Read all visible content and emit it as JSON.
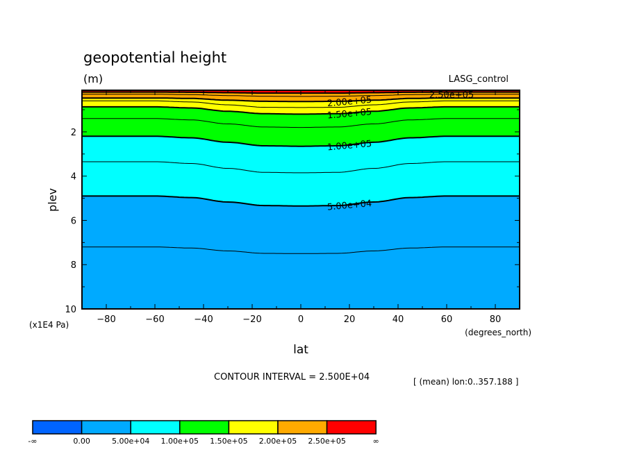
{
  "chart_data": {
    "type": "contour",
    "title": "geopotential height",
    "units": "(m)",
    "dataset": "LASG_control",
    "xlabel": "lat",
    "xunits": "(degrees_north)",
    "ylabel": "plev",
    "yunits": "(x1E4 Pa)",
    "xlim": [
      -90,
      90
    ],
    "ylim": [
      0.12,
      10
    ],
    "y_inverted": true,
    "xticks": [
      -80,
      -60,
      -40,
      -20,
      0,
      20,
      40,
      60,
      80
    ],
    "yticks": [
      2,
      4,
      6,
      8,
      10
    ],
    "contour_interval_text": "CONTOUR INTERVAL = 2.500E+04",
    "mean_text": "[ (mean) lon:0..357.188 ]",
    "lat": [
      -90,
      -60,
      -45,
      -30,
      -15,
      0,
      15,
      30,
      45,
      60,
      90
    ],
    "contours": [
      {
        "level": 25000,
        "label": "",
        "plev": [
          7.2,
          7.2,
          7.25,
          7.38,
          7.49,
          7.5,
          7.49,
          7.38,
          7.25,
          7.2,
          7.2
        ]
      },
      {
        "level": 50000,
        "label": "5.00e+04",
        "plev": [
          4.9,
          4.9,
          4.97,
          5.17,
          5.33,
          5.35,
          5.33,
          5.17,
          4.97,
          4.9,
          4.9
        ]
      },
      {
        "level": 75000,
        "label": "",
        "plev": [
          3.35,
          3.35,
          3.43,
          3.65,
          3.83,
          3.85,
          3.83,
          3.65,
          3.43,
          3.35,
          3.35
        ]
      },
      {
        "level": 100000,
        "label": "1.00e+05",
        "plev": [
          2.2,
          2.2,
          2.27,
          2.47,
          2.63,
          2.65,
          2.63,
          2.47,
          2.27,
          2.2,
          2.2
        ]
      },
      {
        "level": 125000,
        "label": "",
        "plev": [
          1.4,
          1.4,
          1.46,
          1.64,
          1.78,
          1.8,
          1.78,
          1.64,
          1.46,
          1.4,
          1.4
        ]
      },
      {
        "level": 150000,
        "label": "1.50e+05",
        "plev": [
          0.87,
          0.87,
          0.92,
          1.07,
          1.18,
          1.2,
          1.18,
          1.07,
          0.92,
          0.87,
          0.87
        ]
      },
      {
        "level": 175000,
        "label": "",
        "plev": [
          0.6,
          0.6,
          0.65,
          0.78,
          0.89,
          0.9,
          0.89,
          0.78,
          0.65,
          0.6,
          0.6
        ]
      },
      {
        "level": 200000,
        "label": "2.00e+05",
        "plev": [
          0.47,
          0.47,
          0.49,
          0.57,
          0.62,
          0.63,
          0.62,
          0.57,
          0.49,
          0.47,
          0.47
        ]
      },
      {
        "level": 225000,
        "label": "",
        "plev": [
          0.3,
          0.3,
          0.32,
          0.36,
          0.39,
          0.4,
          0.39,
          0.36,
          0.32,
          0.3,
          0.3
        ]
      },
      {
        "level": 250000,
        "label": "2.50e+05",
        "plev": [
          0.2,
          0.2,
          0.21,
          0.23,
          0.25,
          0.25,
          0.25,
          0.23,
          0.21,
          0.2,
          0.2
        ]
      }
    ],
    "colorbar": {
      "labels": [
        "-∞",
        "0.00",
        "5.00e+04",
        "1.00e+05",
        "1.50e+05",
        "2.00e+05",
        "2.50e+05",
        "∞"
      ],
      "colors": [
        "#0064ff",
        "#00aaff",
        "#00ffff",
        "#00ff00",
        "#ffff00",
        "#ffaa00",
        "#ff0000"
      ]
    }
  }
}
